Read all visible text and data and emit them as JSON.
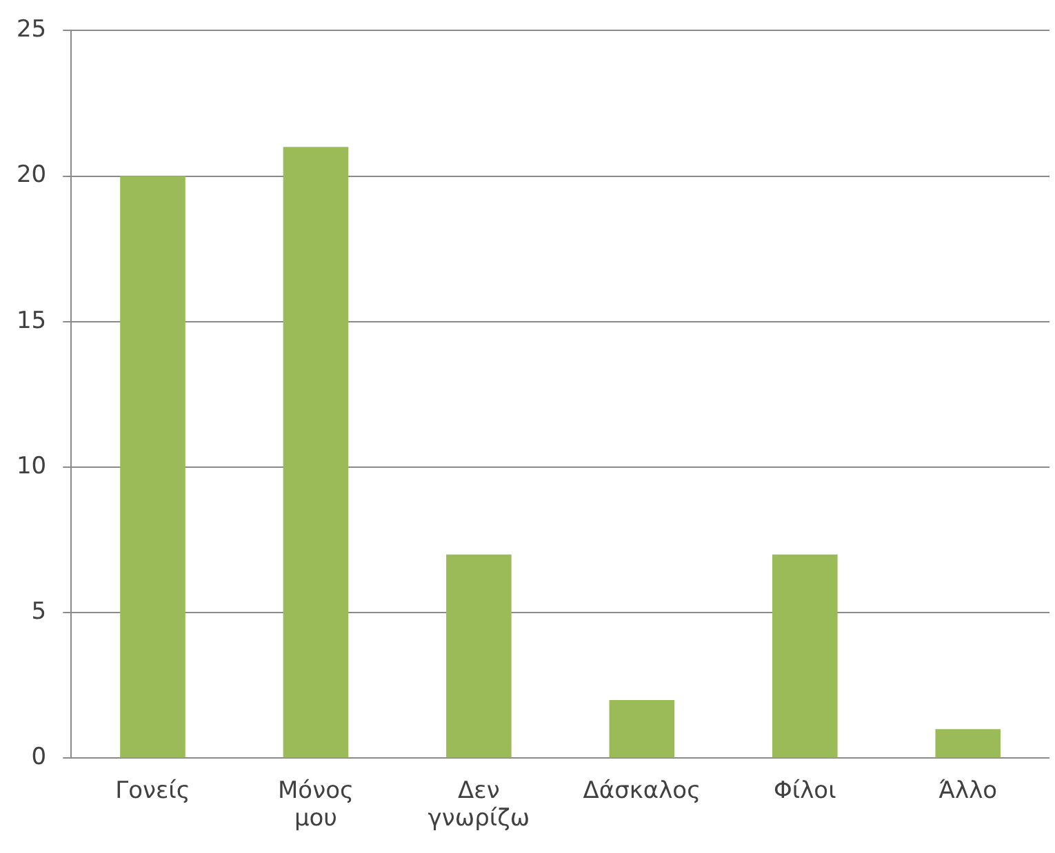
{
  "chart_data": {
    "type": "bar",
    "categories": [
      "Γονείς",
      "Μόνος μου",
      "Δεν γνωρίζω",
      "Δάσκαλος",
      "Φίλοι",
      "Άλλο"
    ],
    "values": [
      20,
      21,
      7,
      2,
      7,
      1
    ],
    "color": "#9bbb59",
    "ylim": [
      0,
      25
    ],
    "yticks": [
      0,
      5,
      10,
      15,
      20,
      25
    ],
    "grid": "y",
    "legend": false
  }
}
